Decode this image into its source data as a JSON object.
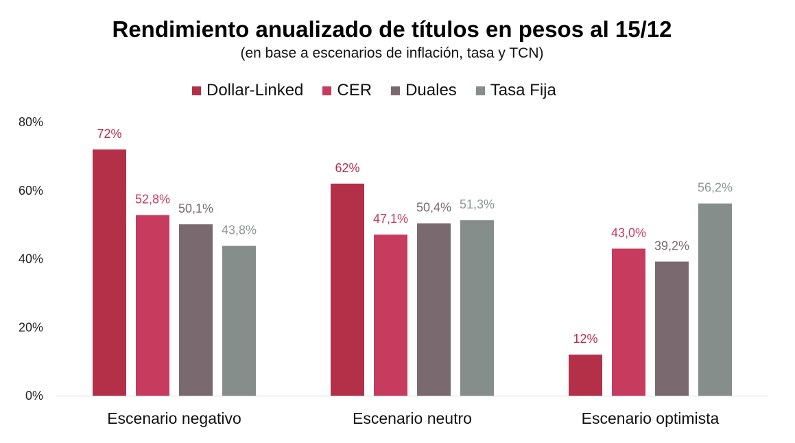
{
  "chart_data": {
    "type": "bar",
    "title": "Rendimiento anualizado de títulos en pesos al 15/12",
    "subtitle": "(en base a escenarios de inflación, tasa y TCN)",
    "categories": [
      "Escenario negativo",
      "Escenario neutro",
      "Escenario optimista"
    ],
    "series": [
      {
        "name": "Dollar-Linked",
        "color": "#B33048",
        "label_color": "#B33048",
        "values": [
          72,
          62,
          12
        ],
        "labels": [
          "72%",
          "62%",
          "12%"
        ]
      },
      {
        "name": "CER",
        "color": "#C73B5E",
        "label_color": "#C73B5E",
        "values": [
          52.8,
          47.1,
          43.0
        ],
        "labels": [
          "52,8%",
          "47,1%",
          "43,0%"
        ]
      },
      {
        "name": "Duales",
        "color": "#7A6A6F",
        "label_color": "#7A6A6F",
        "values": [
          50.1,
          50.4,
          39.2
        ],
        "labels": [
          "50,1%",
          "50,4%",
          "39,2%"
        ]
      },
      {
        "name": "Tasa Fija",
        "color": "#858E8A",
        "label_color": "#8F9592",
        "values": [
          43.8,
          51.3,
          56.2
        ],
        "labels": [
          "43,8%",
          "51,3%",
          "56,2%"
        ]
      }
    ],
    "ylim": [
      0,
      80
    ],
    "yticks": [
      0,
      20,
      40,
      60,
      80
    ],
    "ytick_labels": [
      "0%",
      "20%",
      "40%",
      "60%",
      "80%"
    ],
    "legend_position": "top-center",
    "grid": false
  }
}
